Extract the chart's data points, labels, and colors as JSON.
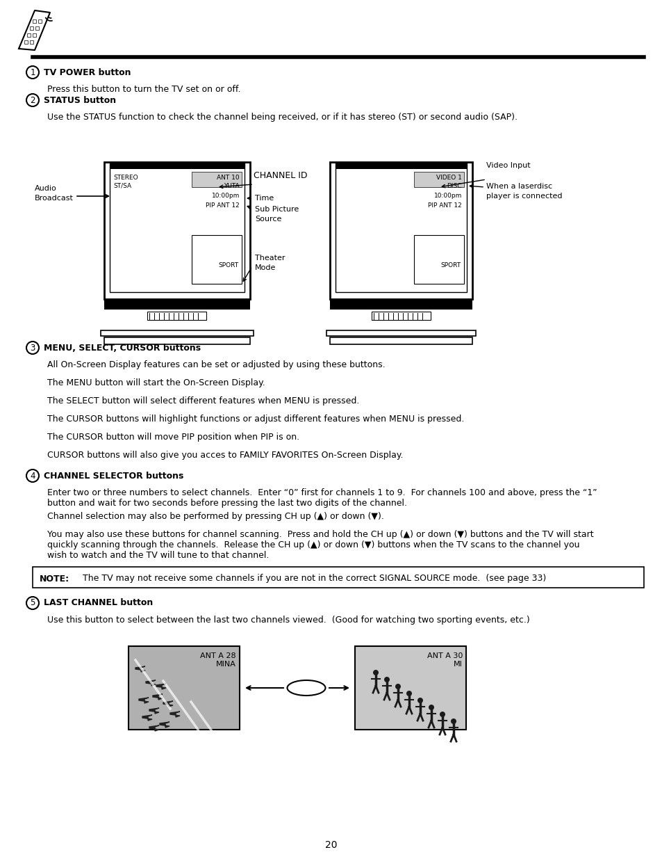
{
  "bg_color": "#ffffff",
  "text_color": "#000000",
  "page_number": "20",
  "section1_heading": "TV POWER button",
  "section1_body": "Press this button to turn the TV set on or off.",
  "section2_heading": "STATUS button",
  "section2_body": "Use the STATUS function to check the channel being received, or if it has stereo (ST) or second audio (SAP).",
  "section3_heading": "MENU, SELECT, CURSOR buttons",
  "section3_lines": [
    "All On-Screen Display features can be set or adjusted by using these buttons.",
    "The MENU button will start the On-Screen Display.",
    "The SELECT button will select different features when MENU is pressed.",
    "The CURSOR buttons will highlight functions or adjust different features when MENU is pressed.",
    "The CURSOR button will move PIP position when PIP is on.",
    "CURSOR buttons will also give you acces to FAMILY FAVORITES On-Screen Display."
  ],
  "section4_heading": "CHANNEL SELECTOR buttons",
  "section4_lines": [
    "Enter two or three numbers to select channels.  Enter “0” first for channels 1 to 9.  For channels 100 and above, press the “1”\nbutton and wait for two seconds before pressing the last two digits of the channel.",
    "Channel selection may also be performed by pressing CH up (▲) or down (▼).",
    "You may also use these buttons for channel scanning.  Press and hold the CH up (▲) or down (▼) buttons and the TV will start\nquickly scanning through the channels.  Release the CH up (▲) or down (▼) buttons when the TV scans to the channel you\nwish to watch and the TV will tune to that channel."
  ],
  "note_label": "NOTE:",
  "note_body": "The TV may not receive some channels if you are not in the correct SIGNAL SOURCE mode.  (see page 33)",
  "section5_heading": "LAST CHANNEL button",
  "section5_body": "Use this button to select between the last two channels viewed.  (Good for watching two sporting events, etc.)",
  "last_ch_left_line1": "ANT A 28",
  "last_ch_left_line2": "MINA",
  "last_ch_right_line1": "ANT A 30",
  "last_ch_right_line2": "MI"
}
